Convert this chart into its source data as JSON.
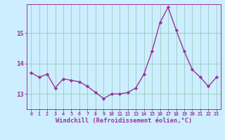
{
  "x": [
    0,
    1,
    2,
    3,
    4,
    5,
    6,
    7,
    8,
    9,
    10,
    11,
    12,
    13,
    14,
    15,
    16,
    17,
    18,
    19,
    20,
    21,
    22,
    23
  ],
  "y": [
    13.7,
    13.55,
    13.65,
    13.2,
    13.5,
    13.45,
    13.4,
    13.25,
    13.05,
    12.85,
    13.0,
    13.0,
    13.05,
    13.2,
    13.65,
    14.4,
    15.35,
    15.85,
    15.1,
    14.4,
    13.8,
    13.55,
    13.25,
    13.55
  ],
  "line_color": "#993399",
  "marker": "D",
  "marker_size": 2.2,
  "line_width": 1.0,
  "bg_color": "#cceeff",
  "grid_color": "#99ccbb",
  "xlabel": "Windchill (Refroidissement éolien,°C)",
  "xlabel_color": "#993399",
  "tick_color": "#993399",
  "yticks": [
    13,
    14,
    15
  ],
  "ylim": [
    12.5,
    15.95
  ],
  "xlim": [
    -0.5,
    23.5
  ]
}
